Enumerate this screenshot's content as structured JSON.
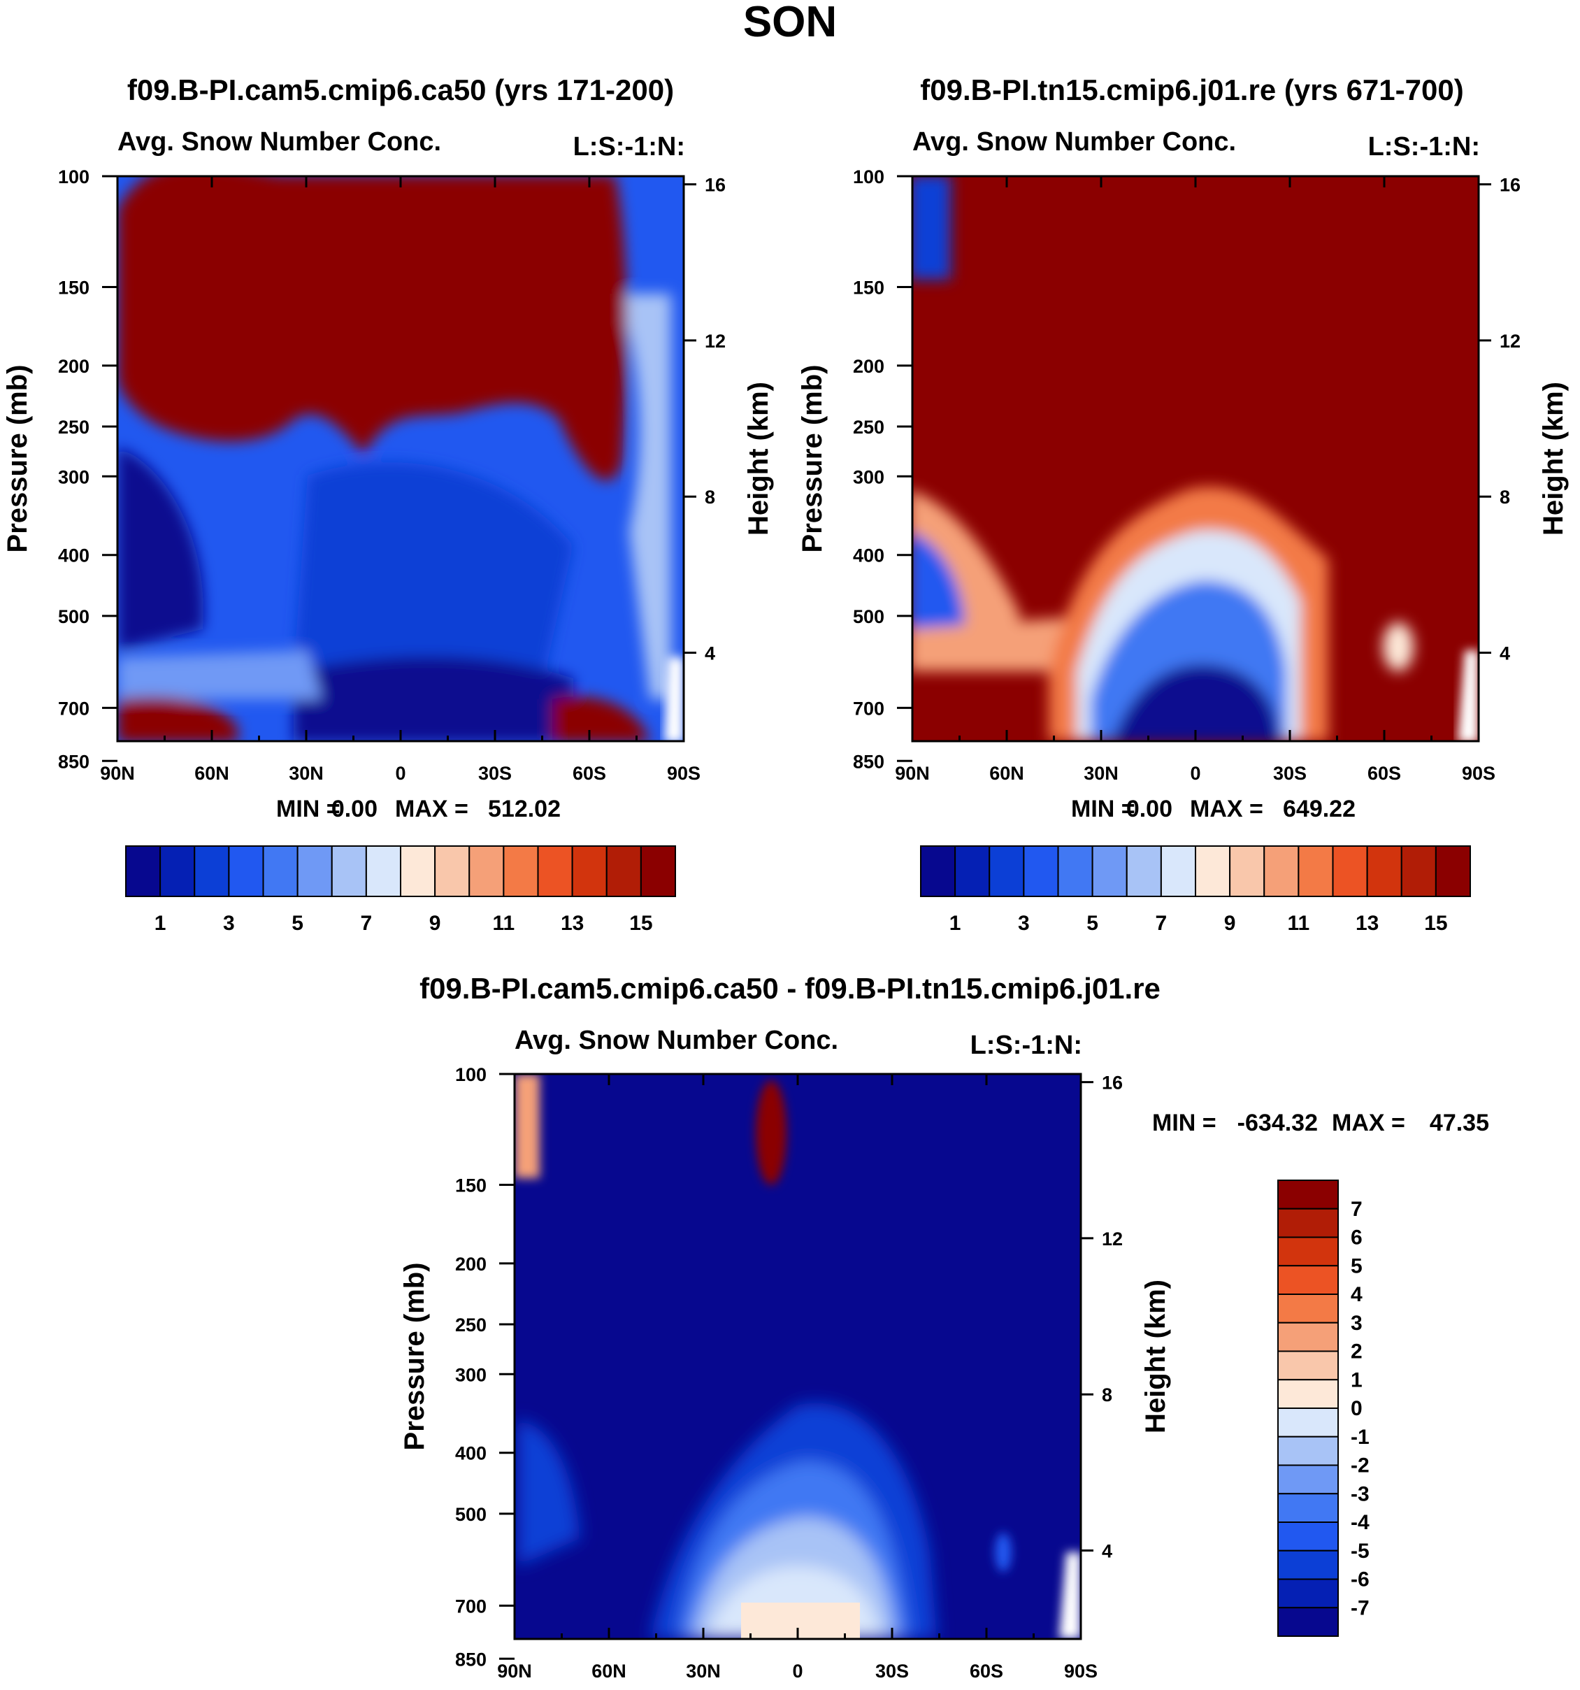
{
  "title": "SON",
  "colors": {
    "seq_palette": [
      "#07088f",
      "#0520b4",
      "#0c3fd6",
      "#2158f0",
      "#4178f3",
      "#6f99f5",
      "#a8c3f6",
      "#d9e7fb",
      "#fde8d8",
      "#f9c7ab",
      "#f5a078",
      "#f37a46",
      "#ec5324",
      "#d2340d",
      "#b11d06",
      "#8b0000"
    ],
    "diff_palette": [
      "#07088f",
      "#0520b4",
      "#0c3fd6",
      "#2158f0",
      "#4178f3",
      "#6f99f5",
      "#a8c3f6",
      "#d9e7fb",
      "#fde8d8",
      "#f9c7ab",
      "#f5a078",
      "#f37a46",
      "#ec5324",
      "#d2340d",
      "#b11d06",
      "#8b0000"
    ]
  },
  "chart_data": [
    {
      "type": "heatmap",
      "title": "f09.B-PI.cam5.cmip6.ca50 (yrs 171-200)",
      "subtitle_left": "Avg. Snow Number Conc.",
      "subtitle_right": "L:S:-1:N:",
      "ylabel": "Pressure (mb)",
      "y2label": "Height (km)",
      "xlim": [
        90,
        -90
      ],
      "x_tick_labels": [
        "90N",
        "60N",
        "30N",
        "0",
        "30S",
        "60S",
        "90S"
      ],
      "y_tick_labels": [
        "100",
        "150",
        "200",
        "250",
        "300",
        "400",
        "500",
        "700",
        "850"
      ],
      "y2_tick_labels": [
        "16",
        "12",
        "8",
        "4"
      ],
      "min_label": "MIN =",
      "min_value": "0.00",
      "max_label": "MAX =",
      "max_value": "512.02",
      "colorbar_labels": [
        "1",
        "3",
        "5",
        "7",
        "9",
        "11",
        "13",
        "15"
      ],
      "colorbar_levels": 16
    },
    {
      "type": "heatmap",
      "title": "f09.B-PI.tn15.cmip6.j01.re (yrs 671-700)",
      "subtitle_left": "Avg. Snow Number Conc.",
      "subtitle_right": "L:S:-1:N:",
      "ylabel": "Pressure (mb)",
      "y2label": "Height (km)",
      "xlim": [
        90,
        -90
      ],
      "x_tick_labels": [
        "90N",
        "60N",
        "30N",
        "0",
        "30S",
        "60S",
        "90S"
      ],
      "y_tick_labels": [
        "100",
        "150",
        "200",
        "250",
        "300",
        "400",
        "500",
        "700",
        "850"
      ],
      "y2_tick_labels": [
        "16",
        "12",
        "8",
        "4"
      ],
      "min_label": "MIN =",
      "min_value": "0.00",
      "max_label": "MAX =",
      "max_value": "649.22",
      "colorbar_labels": [
        "1",
        "3",
        "5",
        "7",
        "9",
        "11",
        "13",
        "15"
      ],
      "colorbar_levels": 16
    },
    {
      "type": "heatmap",
      "title": "f09.B-PI.cam5.cmip6.ca50 - f09.B-PI.tn15.cmip6.j01.re",
      "subtitle_left": "Avg. Snow Number Conc.",
      "subtitle_right": "L:S:-1:N:",
      "ylabel": "Pressure (mb)",
      "y2label": "Height (km)",
      "xlim": [
        90,
        -90
      ],
      "x_tick_labels": [
        "90N",
        "60N",
        "30N",
        "0",
        "30S",
        "60S",
        "90S"
      ],
      "y_tick_labels": [
        "100",
        "150",
        "200",
        "250",
        "300",
        "400",
        "500",
        "700",
        "850"
      ],
      "y2_tick_labels": [
        "16",
        "12",
        "8",
        "4"
      ],
      "min_label": "MIN =",
      "min_value": "-634.32",
      "max_label": "MAX =",
      "max_value": "47.35",
      "colorbar_labels": [
        "7",
        "6",
        "5",
        "4",
        "3",
        "2",
        "1",
        "0",
        "-1",
        "-2",
        "-3",
        "-4",
        "-5",
        "-6",
        "-7"
      ],
      "colorbar_levels": 16
    }
  ]
}
